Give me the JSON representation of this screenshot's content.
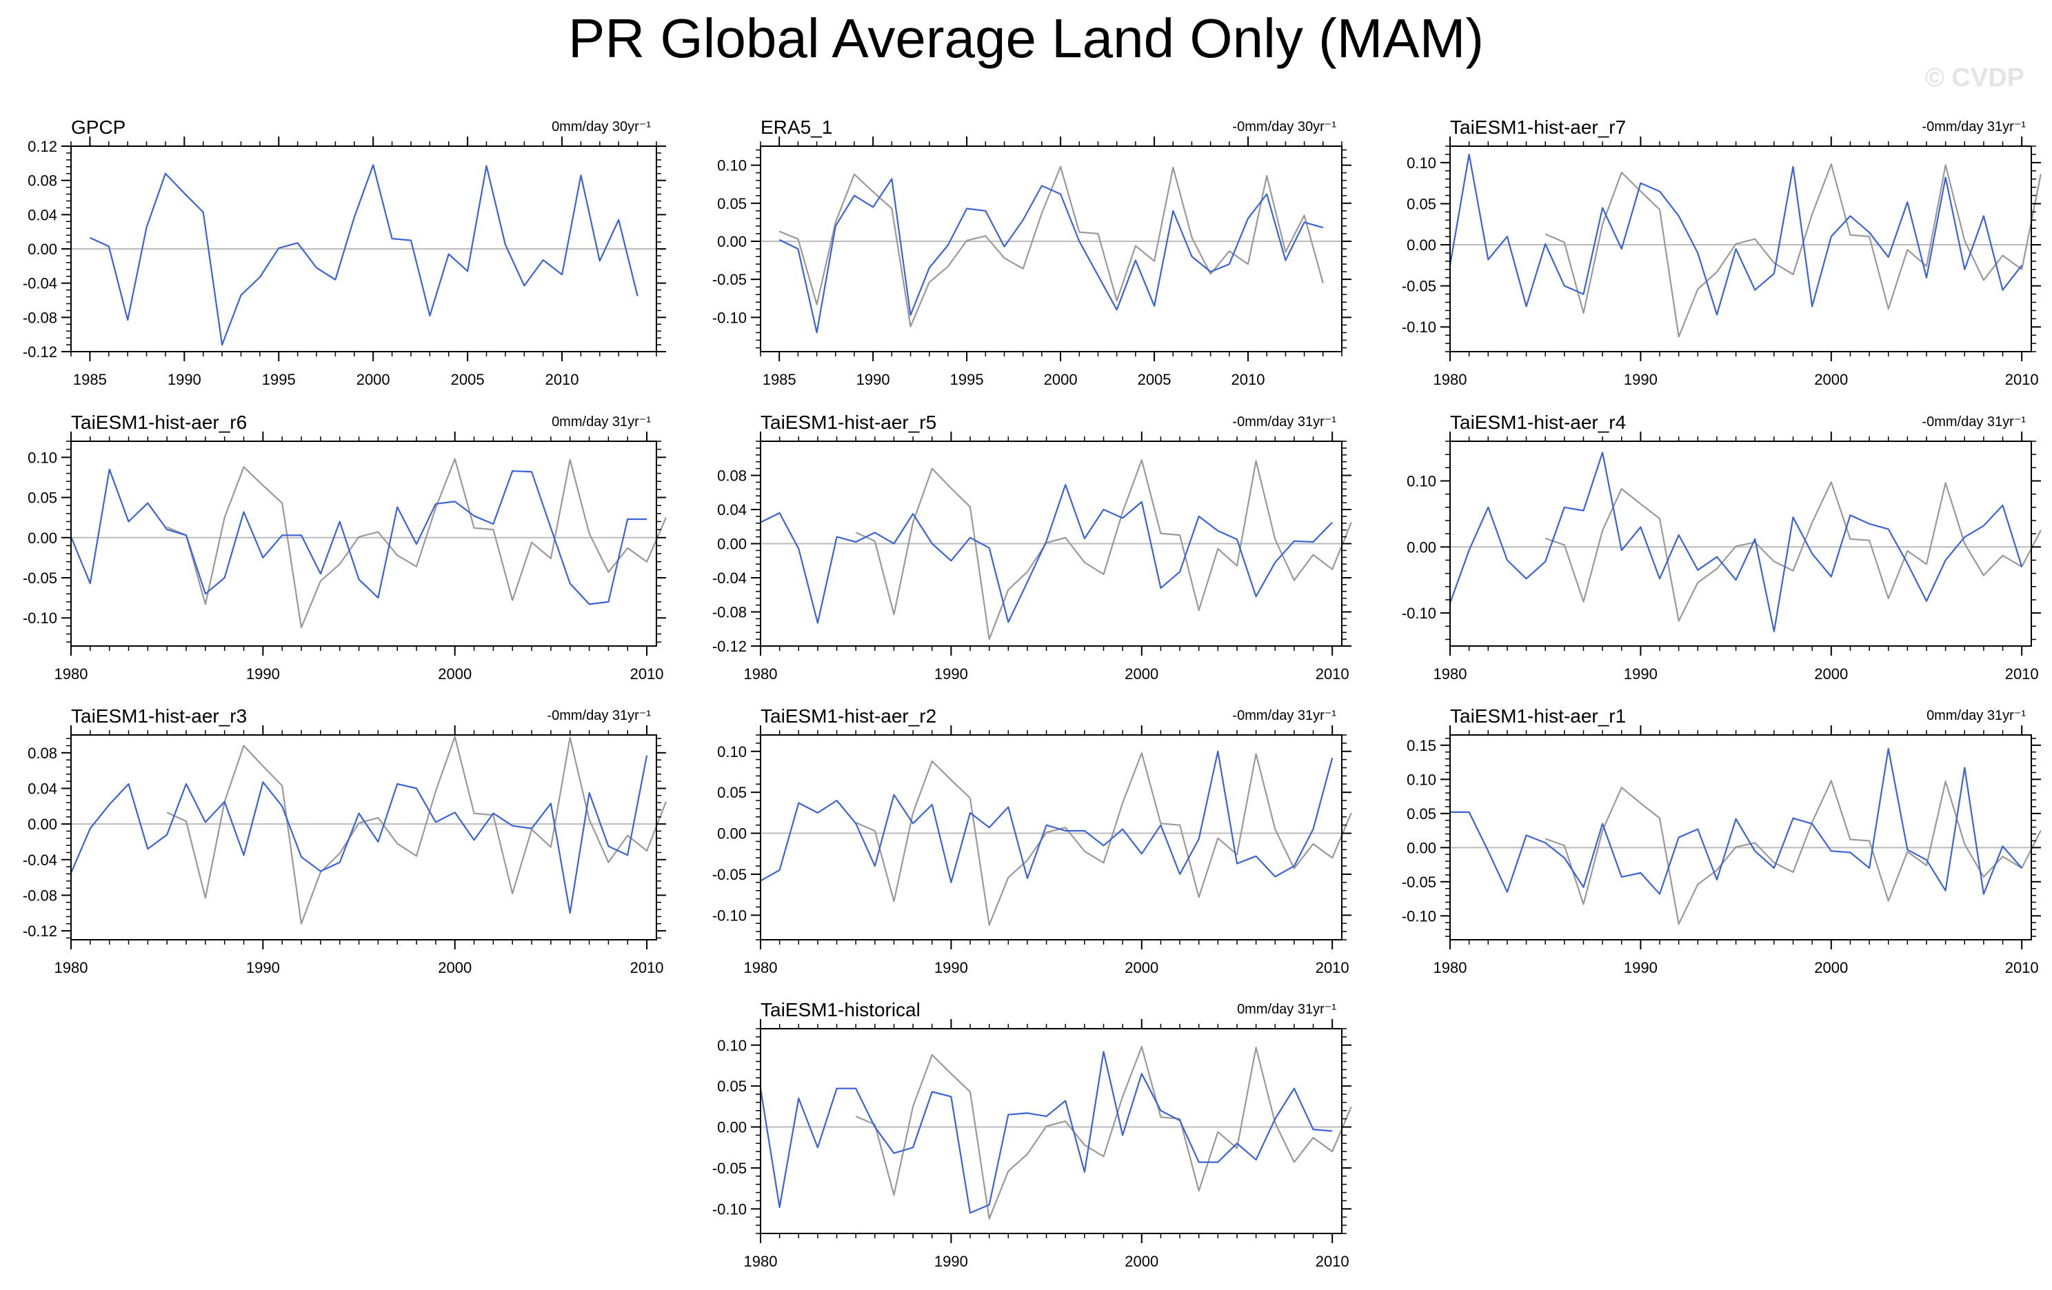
{
  "title": "PR Global Average Land Only (MAM)",
  "watermark": "© CVDP",
  "colors": {
    "model": "#3a63d8",
    "observed": "#999999",
    "zero": "#bbbbbb",
    "axis": "#000000"
  },
  "chart_data": [
    {
      "type": "line",
      "title": "GPCP",
      "trend": "0mm/day 30yr⁻¹",
      "xlim": [
        1984,
        2015
      ],
      "ylim": [
        -0.12,
        0.12
      ],
      "xticks": [
        1985,
        1990,
        1995,
        2000,
        2005,
        2010
      ],
      "yticks": [
        -0.12,
        -0.08,
        -0.04,
        0.0,
        0.04,
        0.08,
        0.12
      ],
      "ytick_labels": [
        "-0.12",
        "-0.08",
        "-0.04",
        "0.00",
        "0.04",
        "0.08",
        "0.12"
      ],
      "series": [
        {
          "name": "GPCP",
          "color": "blue",
          "x0": 1985,
          "values": [
            0.013,
            0.003,
            -0.083,
            0.025,
            0.088,
            0.065,
            0.043,
            -0.112,
            -0.054,
            -0.033,
            0.001,
            0.007,
            -0.022,
            -0.036,
            0.037,
            0.098,
            0.012,
            0.01,
            -0.078,
            -0.006,
            -0.026,
            0.097,
            0.005,
            -0.043,
            -0.013,
            -0.03,
            0.086,
            -0.014,
            0.034,
            -0.055
          ]
        }
      ]
    },
    {
      "type": "line",
      "title": "ERA5_1",
      "trend": "-0mm/day 30yr⁻¹",
      "xlim": [
        1984,
        2015
      ],
      "ylim": [
        -0.145,
        0.125
      ],
      "xticks": [
        1985,
        1990,
        1995,
        2000,
        2005,
        2010
      ],
      "yticks": [
        -0.1,
        -0.05,
        0.0,
        0.05,
        0.1
      ],
      "ytick_labels": [
        "-0.10",
        "-0.05",
        "0.00",
        "0.05",
        "0.10"
      ],
      "series": [
        {
          "name": "GPCP",
          "color": "gray",
          "x0": 1985,
          "values": [
            0.013,
            0.003,
            -0.083,
            0.025,
            0.088,
            0.065,
            0.043,
            -0.112,
            -0.054,
            -0.033,
            0.001,
            0.007,
            -0.022,
            -0.036,
            0.037,
            0.098,
            0.012,
            0.01,
            -0.078,
            -0.006,
            -0.026,
            0.097,
            0.005,
            -0.043,
            -0.013,
            -0.03,
            0.086,
            -0.014,
            0.034,
            -0.055
          ]
        },
        {
          "name": "ERA5_1",
          "color": "blue",
          "x0": 1985,
          "values": [
            0.002,
            -0.01,
            -0.12,
            0.02,
            0.06,
            0.045,
            0.082,
            -0.097,
            -0.035,
            -0.005,
            0.043,
            0.04,
            -0.007,
            0.028,
            0.073,
            0.062,
            0.0,
            -0.045,
            -0.09,
            -0.025,
            -0.085,
            0.04,
            -0.02,
            -0.04,
            -0.03,
            0.03,
            0.062,
            -0.025,
            0.025,
            0.018
          ]
        }
      ]
    },
    {
      "type": "line",
      "title": "TaiESM1-hist-aer_r7",
      "trend": "-0mm/day 31yr⁻¹",
      "xlim": [
        1980,
        2010.5
      ],
      "ylim": [
        -0.13,
        0.12
      ],
      "xticks": [
        1980,
        1990,
        2000,
        2010
      ],
      "yticks": [
        -0.1,
        -0.05,
        0.0,
        0.05,
        0.1
      ],
      "ytick_labels": [
        "-0.10",
        "-0.05",
        "0.00",
        "0.05",
        "0.10"
      ],
      "series": [
        {
          "name": "GPCP",
          "color": "gray",
          "x0": 1985,
          "values": [
            0.013,
            0.003,
            -0.083,
            0.025,
            0.088,
            0.065,
            0.043,
            -0.112,
            -0.054,
            -0.033,
            0.001,
            0.007,
            -0.022,
            -0.036,
            0.037,
            0.098,
            0.012,
            0.01,
            -0.078,
            -0.006,
            -0.026,
            0.097,
            0.005,
            -0.043,
            -0.013,
            -0.03,
            0.086
          ]
        },
        {
          "name": "TaiESM1-hist-aer_r7",
          "color": "blue",
          "x0": 1980,
          "values": [
            -0.025,
            0.11,
            -0.018,
            0.01,
            -0.075,
            0.001,
            -0.05,
            -0.06,
            0.045,
            -0.005,
            0.075,
            0.065,
            0.035,
            -0.01,
            -0.085,
            -0.005,
            -0.055,
            -0.035,
            0.095,
            -0.075,
            0.01,
            0.035,
            0.015,
            -0.015,
            0.052,
            -0.04,
            0.082,
            -0.03,
            0.035,
            -0.055,
            -0.025
          ]
        }
      ]
    },
    {
      "type": "line",
      "title": "TaiESM1-hist-aer_r6",
      "trend": "0mm/day 31yr⁻¹",
      "xlim": [
        1980,
        2010.5
      ],
      "ylim": [
        -0.135,
        0.12
      ],
      "xticks": [
        1980,
        1990,
        2000,
        2010
      ],
      "yticks": [
        -0.1,
        -0.05,
        0.0,
        0.05,
        0.1
      ],
      "ytick_labels": [
        "-0.10",
        "-0.05",
        "0.00",
        "0.05",
        "0.10"
      ],
      "series": [
        {
          "name": "GPCP",
          "color": "gray",
          "x0": 1985,
          "values": [
            0.013,
            0.003,
            -0.083,
            0.025,
            0.088,
            0.065,
            0.043,
            -0.112,
            -0.054,
            -0.033,
            0.001,
            0.007,
            -0.022,
            -0.036,
            0.037,
            0.098,
            0.012,
            0.01,
            -0.078,
            -0.006,
            -0.026,
            0.097,
            0.005,
            -0.043,
            -0.013,
            -0.03,
            0.025
          ]
        },
        {
          "name": "TaiESM1-hist-aer_r6",
          "color": "blue",
          "x0": 1980,
          "values": [
            0.001,
            -0.057,
            0.085,
            0.02,
            0.043,
            0.01,
            0.003,
            -0.07,
            -0.05,
            0.032,
            -0.025,
            0.003,
            0.003,
            -0.045,
            0.02,
            -0.052,
            -0.075,
            0.038,
            -0.008,
            0.042,
            0.045,
            0.027,
            0.017,
            0.083,
            0.082,
            0.012,
            -0.057,
            -0.083,
            -0.08,
            0.023,
            0.023
          ]
        }
      ]
    },
    {
      "type": "line",
      "title": "TaiESM1-hist-aer_r5",
      "trend": "-0mm/day 31yr⁻¹",
      "xlim": [
        1980,
        2010.5
      ],
      "ylim": [
        -0.12,
        0.12
      ],
      "xticks": [
        1980,
        1990,
        2000,
        2010
      ],
      "yticks": [
        -0.12,
        -0.08,
        -0.04,
        0.0,
        0.04,
        0.08
      ],
      "ytick_labels": [
        "-0.12",
        "-0.08",
        "-0.04",
        "0.00",
        "0.04",
        "0.08"
      ],
      "series": [
        {
          "name": "GPCP",
          "color": "gray",
          "x0": 1985,
          "values": [
            0.013,
            0.003,
            -0.083,
            0.025,
            0.088,
            0.065,
            0.043,
            -0.112,
            -0.054,
            -0.033,
            0.001,
            0.007,
            -0.022,
            -0.036,
            0.037,
            0.098,
            0.012,
            0.01,
            -0.078,
            -0.006,
            -0.026,
            0.097,
            0.005,
            -0.043,
            -0.013,
            -0.03,
            0.025
          ]
        },
        {
          "name": "TaiESM1-hist-aer_r5",
          "color": "blue",
          "x0": 1980,
          "values": [
            0.025,
            0.036,
            -0.006,
            -0.093,
            0.008,
            0.002,
            0.013,
            0.0,
            0.035,
            0.0,
            -0.02,
            0.007,
            -0.005,
            -0.092,
            -0.045,
            0.003,
            0.069,
            0.006,
            0.04,
            0.03,
            0.049,
            -0.052,
            -0.033,
            0.032,
            0.015,
            0.005,
            -0.062,
            -0.022,
            0.003,
            0.002,
            0.025
          ]
        }
      ]
    },
    {
      "type": "line",
      "title": "TaiESM1-hist-aer_r4",
      "trend": "-0mm/day 31yr⁻¹",
      "xlim": [
        1980,
        2010.5
      ],
      "ylim": [
        -0.15,
        0.16
      ],
      "xticks": [
        1980,
        1990,
        2000,
        2010
      ],
      "yticks": [
        -0.1,
        0.0,
        0.1
      ],
      "ytick_labels": [
        "-0.10",
        "0.00",
        "0.10"
      ],
      "series": [
        {
          "name": "GPCP",
          "color": "gray",
          "x0": 1985,
          "values": [
            0.013,
            0.003,
            -0.083,
            0.025,
            0.088,
            0.065,
            0.043,
            -0.112,
            -0.054,
            -0.033,
            0.001,
            0.007,
            -0.022,
            -0.036,
            0.037,
            0.098,
            0.012,
            0.01,
            -0.078,
            -0.006,
            -0.026,
            0.097,
            0.005,
            -0.043,
            -0.013,
            -0.03,
            0.025
          ]
        },
        {
          "name": "TaiESM1-hist-aer_r4",
          "color": "blue",
          "x0": 1980,
          "values": [
            -0.085,
            -0.005,
            0.06,
            -0.02,
            -0.048,
            -0.022,
            0.06,
            0.055,
            0.143,
            -0.005,
            0.03,
            -0.048,
            0.018,
            -0.035,
            -0.015,
            -0.05,
            0.012,
            -0.128,
            0.045,
            -0.01,
            -0.045,
            0.048,
            0.035,
            0.027,
            -0.025,
            -0.082,
            -0.02,
            0.015,
            0.032,
            0.063,
            -0.03
          ]
        }
      ]
    },
    {
      "type": "line",
      "title": "TaiESM1-hist-aer_r3",
      "trend": "-0mm/day 31yr⁻¹",
      "xlim": [
        1980,
        2010.5
      ],
      "ylim": [
        -0.13,
        0.1
      ],
      "xticks": [
        1980,
        1990,
        2000,
        2010
      ],
      "yticks": [
        -0.12,
        -0.08,
        -0.04,
        0.0,
        0.04,
        0.08
      ],
      "ytick_labels": [
        "-0.12",
        "-0.08",
        "-0.04",
        "0.00",
        "0.04",
        "0.08"
      ],
      "series": [
        {
          "name": "GPCP",
          "color": "gray",
          "x0": 1985,
          "values": [
            0.013,
            0.003,
            -0.083,
            0.025,
            0.088,
            0.065,
            0.043,
            -0.112,
            -0.054,
            -0.033,
            0.001,
            0.007,
            -0.022,
            -0.036,
            0.037,
            0.098,
            0.012,
            0.01,
            -0.078,
            -0.006,
            -0.026,
            0.097,
            0.005,
            -0.043,
            -0.013,
            -0.03,
            0.025
          ]
        },
        {
          "name": "TaiESM1-hist-aer_r3",
          "color": "blue",
          "x0": 1980,
          "values": [
            -0.055,
            -0.005,
            0.022,
            0.045,
            -0.028,
            -0.012,
            0.045,
            0.002,
            0.025,
            -0.035,
            0.047,
            0.02,
            -0.037,
            -0.053,
            -0.043,
            0.012,
            -0.02,
            0.045,
            0.04,
            0.002,
            0.013,
            -0.018,
            0.012,
            -0.002,
            -0.005,
            0.023,
            -0.1,
            0.035,
            -0.025,
            -0.035,
            0.077
          ]
        }
      ]
    },
    {
      "type": "line",
      "title": "TaiESM1-hist-aer_r2",
      "trend": "-0mm/day 31yr⁻¹",
      "xlim": [
        1980,
        2010.5
      ],
      "ylim": [
        -0.13,
        0.12
      ],
      "xticks": [
        1980,
        1990,
        2000,
        2010
      ],
      "yticks": [
        -0.1,
        -0.05,
        0.0,
        0.05,
        0.1
      ],
      "ytick_labels": [
        "-0.10",
        "-0.05",
        "0.00",
        "0.05",
        "0.10"
      ],
      "series": [
        {
          "name": "GPCP",
          "color": "gray",
          "x0": 1985,
          "values": [
            0.013,
            0.003,
            -0.083,
            0.025,
            0.088,
            0.065,
            0.043,
            -0.112,
            -0.054,
            -0.033,
            0.001,
            0.007,
            -0.022,
            -0.036,
            0.037,
            0.098,
            0.012,
            0.01,
            -0.078,
            -0.006,
            -0.026,
            0.097,
            0.005,
            -0.043,
            -0.013,
            -0.03,
            0.025
          ]
        },
        {
          "name": "TaiESM1-hist-aer_r2",
          "color": "blue",
          "x0": 1980,
          "values": [
            -0.058,
            -0.045,
            0.037,
            0.025,
            0.04,
            0.012,
            -0.04,
            0.047,
            0.012,
            0.035,
            -0.06,
            0.025,
            0.007,
            0.032,
            -0.055,
            0.01,
            0.003,
            0.003,
            -0.015,
            0.005,
            -0.025,
            0.01,
            -0.05,
            -0.007,
            0.1,
            -0.037,
            -0.028,
            -0.053,
            -0.04,
            0.005,
            0.092
          ]
        }
      ]
    },
    {
      "type": "line",
      "title": "TaiESM1-hist-aer_r1",
      "trend": "0mm/day 31yr⁻¹",
      "xlim": [
        1980,
        2010.5
      ],
      "ylim": [
        -0.135,
        0.165
      ],
      "xticks": [
        1980,
        1990,
        2000,
        2010
      ],
      "yticks": [
        -0.1,
        -0.05,
        0.0,
        0.05,
        0.1,
        0.15
      ],
      "ytick_labels": [
        "-0.10",
        "-0.05",
        "0.00",
        "0.05",
        "0.10",
        "0.15"
      ],
      "series": [
        {
          "name": "GPCP",
          "color": "gray",
          "x0": 1985,
          "values": [
            0.013,
            0.003,
            -0.083,
            0.025,
            0.088,
            0.065,
            0.043,
            -0.112,
            -0.054,
            -0.033,
            0.001,
            0.007,
            -0.022,
            -0.036,
            0.037,
            0.098,
            0.012,
            0.01,
            -0.078,
            -0.006,
            -0.026,
            0.097,
            0.005,
            -0.043,
            -0.013,
            -0.03,
            0.025
          ]
        },
        {
          "name": "TaiESM1-hist-aer_r1",
          "color": "blue",
          "x0": 1980,
          "values": [
            0.052,
            0.052,
            -0.005,
            -0.065,
            0.018,
            0.007,
            -0.015,
            -0.058,
            0.035,
            -0.043,
            -0.037,
            -0.068,
            0.015,
            0.027,
            -0.047,
            0.042,
            -0.005,
            -0.03,
            0.043,
            0.035,
            -0.005,
            -0.007,
            -0.03,
            0.145,
            -0.003,
            -0.018,
            -0.063,
            0.117,
            -0.068,
            0.002,
            -0.03
          ]
        }
      ]
    },
    {
      "type": "line",
      "title": "TaiESM1-historical",
      "trend": "0mm/day 31yr⁻¹",
      "xlim": [
        1980,
        2010.5
      ],
      "ylim": [
        -0.13,
        0.12
      ],
      "xticks": [
        1980,
        1990,
        2000,
        2010
      ],
      "yticks": [
        -0.1,
        -0.05,
        0.0,
        0.05,
        0.1
      ],
      "ytick_labels": [
        "-0.10",
        "-0.05",
        "0.00",
        "0.05",
        "0.10"
      ],
      "series": [
        {
          "name": "GPCP",
          "color": "gray",
          "x0": 1985,
          "values": [
            0.013,
            0.003,
            -0.083,
            0.025,
            0.088,
            0.065,
            0.043,
            -0.112,
            -0.054,
            -0.033,
            0.001,
            0.007,
            -0.022,
            -0.036,
            0.037,
            0.098,
            0.012,
            0.01,
            -0.078,
            -0.006,
            -0.026,
            0.097,
            0.005,
            -0.043,
            -0.013,
            -0.03,
            0.025
          ]
        },
        {
          "name": "TaiESM1-historical",
          "color": "blue",
          "x0": 1980,
          "values": [
            0.047,
            -0.098,
            0.035,
            -0.025,
            0.047,
            0.047,
            0.0,
            -0.032,
            -0.025,
            0.043,
            0.037,
            -0.105,
            -0.095,
            0.015,
            0.017,
            0.013,
            0.032,
            -0.055,
            0.092,
            -0.01,
            0.065,
            0.02,
            0.008,
            -0.043,
            -0.043,
            -0.02,
            -0.04,
            0.01,
            0.047,
            -0.003,
            -0.005
          ]
        }
      ]
    }
  ]
}
